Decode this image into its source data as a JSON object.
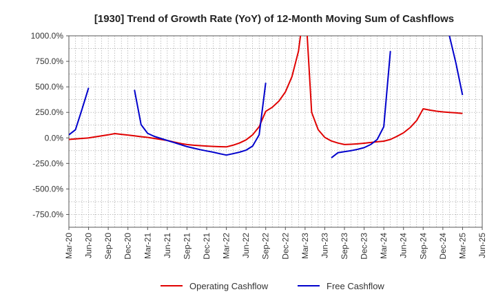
{
  "chart_data": {
    "type": "line",
    "title": "[1930]  Trend of Growth Rate (YoY) of 12-Month Moving Sum of Cashflows",
    "xlabel": "",
    "ylabel": "",
    "ylim": [
      -875,
      1000
    ],
    "y_ticks": [
      1000,
      750,
      500,
      250,
      0,
      -250,
      -500,
      -750
    ],
    "y_tick_labels": [
      "1000.0%",
      "750.0%",
      "500.0%",
      "250.0%",
      "0.0%",
      "-250.0%",
      "-500.0%",
      "-750.0%"
    ],
    "x_tick_labels": [
      "Mar-20",
      "Jun-20",
      "Sep-20",
      "Dec-20",
      "Mar-21",
      "Jun-21",
      "Sep-21",
      "Dec-21",
      "Mar-22",
      "Jun-22",
      "Sep-22",
      "Dec-22",
      "Mar-23",
      "Jun-23",
      "Sep-23",
      "Dec-23",
      "Mar-24",
      "Jun-24",
      "Sep-24",
      "Dec-24",
      "Mar-25",
      "Jun-25"
    ],
    "x_range": [
      "2020-03",
      "2025-06"
    ],
    "grid": true,
    "legend_position": "bottom-center",
    "series": [
      {
        "name": "Operating Cashflow",
        "color": "#e00000",
        "points": [
          [
            "2020-03",
            -15
          ],
          [
            "2020-04",
            -10
          ],
          [
            "2020-05",
            -5
          ],
          [
            "2020-06",
            0
          ],
          [
            "2020-07",
            10
          ],
          [
            "2020-08",
            20
          ],
          [
            "2020-09",
            30
          ],
          [
            "2020-10",
            42
          ],
          [
            "2020-11",
            35
          ],
          [
            "2020-12",
            28
          ],
          [
            "2021-01",
            20
          ],
          [
            "2021-02",
            12
          ],
          [
            "2021-03",
            5
          ],
          [
            "2021-04",
            -5
          ],
          [
            "2021-05",
            -15
          ],
          [
            "2021-06",
            -25
          ],
          [
            "2021-07",
            -40
          ],
          [
            "2021-08",
            -55
          ],
          [
            "2021-09",
            -65
          ],
          [
            "2021-10",
            -72
          ],
          [
            "2021-11",
            -76
          ],
          [
            "2021-12",
            -80
          ],
          [
            "2022-01",
            -83
          ],
          [
            "2022-02",
            -86
          ],
          [
            "2022-03",
            -88
          ],
          [
            "2022-04",
            -72
          ],
          [
            "2022-05",
            -50
          ],
          [
            "2022-06",
            -20
          ],
          [
            "2022-07",
            30
          ],
          [
            "2022-08",
            110
          ],
          [
            "2022-09",
            260
          ],
          [
            "2022-10",
            300
          ],
          [
            "2022-11",
            360
          ],
          [
            "2022-12",
            450
          ],
          [
            "2023-01",
            600
          ],
          [
            "2023-02",
            850
          ],
          [
            "2023-03",
            1350
          ],
          [
            "2023-04",
            250
          ],
          [
            "2023-05",
            80
          ],
          [
            "2023-06",
            5
          ],
          [
            "2023-07",
            -30
          ],
          [
            "2023-08",
            -50
          ],
          [
            "2023-09",
            -65
          ],
          [
            "2023-10",
            -62
          ],
          [
            "2023-11",
            -58
          ],
          [
            "2023-12",
            -52
          ],
          [
            "2024-01",
            -45
          ],
          [
            "2024-02",
            -38
          ],
          [
            "2024-03",
            -32
          ],
          [
            "2024-04",
            -15
          ],
          [
            "2024-05",
            15
          ],
          [
            "2024-06",
            50
          ],
          [
            "2024-07",
            100
          ],
          [
            "2024-08",
            170
          ],
          [
            "2024-09",
            285
          ],
          [
            "2024-10",
            272
          ],
          [
            "2024-11",
            262
          ],
          [
            "2024-12",
            255
          ],
          [
            "2025-01",
            250
          ],
          [
            "2025-02",
            245
          ],
          [
            "2025-03",
            240
          ]
        ]
      },
      {
        "name": "Free Cashflow",
        "color": "#0000cc",
        "segments": [
          [
            [
              "2020-03",
              30
            ],
            [
              "2020-04",
              80
            ],
            [
              "2020-05",
              280
            ],
            [
              "2020-06",
              490
            ]
          ],
          [
            [
              "2021-01",
              470
            ],
            [
              "2021-02",
              130
            ],
            [
              "2021-03",
              45
            ],
            [
              "2021-04",
              15
            ],
            [
              "2021-05",
              -5
            ],
            [
              "2021-06",
              -25
            ],
            [
              "2021-07",
              -45
            ],
            [
              "2021-08",
              -65
            ],
            [
              "2021-09",
              -85
            ],
            [
              "2021-10",
              -100
            ],
            [
              "2021-11",
              -115
            ],
            [
              "2021-12",
              -128
            ],
            [
              "2022-01",
              -140
            ],
            [
              "2022-02",
              -155
            ],
            [
              "2022-03",
              -168
            ],
            [
              "2022-04",
              -155
            ],
            [
              "2022-05",
              -140
            ],
            [
              "2022-06",
              -120
            ],
            [
              "2022-07",
              -80
            ],
            [
              "2022-08",
              30
            ],
            [
              "2022-09",
              540
            ]
          ],
          [
            [
              "2023-07",
              -195
            ],
            [
              "2023-08",
              -145
            ],
            [
              "2023-09",
              -135
            ],
            [
              "2023-10",
              -125
            ],
            [
              "2023-11",
              -112
            ],
            [
              "2023-12",
              -95
            ],
            [
              "2024-01",
              -65
            ],
            [
              "2024-02",
              -15
            ],
            [
              "2024-03",
              110
            ],
            [
              "2024-04",
              850
            ]
          ],
          [
            [
              "2024-12",
              1350
            ],
            [
              "2025-01",
              1000
            ],
            [
              "2025-02",
              730
            ],
            [
              "2025-03",
              420
            ]
          ]
        ]
      }
    ]
  }
}
